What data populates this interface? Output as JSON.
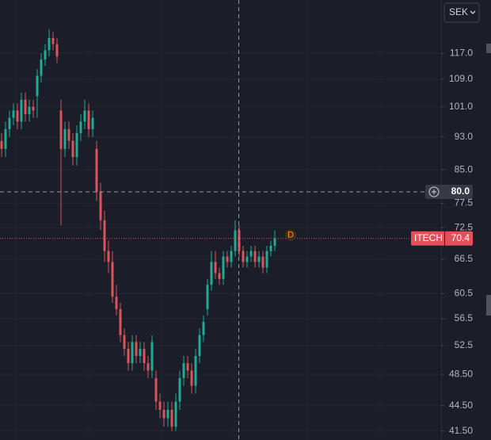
{
  "chart_data": {
    "type": "candlestick",
    "symbol": "ITECH",
    "currency": "SEK",
    "marker": "D",
    "log_scale": true,
    "grid": true,
    "up_color": "#22ab94",
    "down_color": "#d9545b",
    "ylim": [
      40.5,
      135.4
    ],
    "yticks": [
      {
        "value": 117,
        "label": "117.0"
      },
      {
        "value": 109,
        "label": "109.0"
      },
      {
        "value": 101,
        "label": "101.0"
      },
      {
        "value": 93,
        "label": "93.0"
      },
      {
        "value": 85,
        "label": "85.0"
      },
      {
        "value": 77.5,
        "label": "77.5"
      },
      {
        "value": 72.5,
        "label": "72.5"
      },
      {
        "value": 66.5,
        "label": "66.5"
      },
      {
        "value": 60.5,
        "label": "60.5"
      },
      {
        "value": 56.5,
        "label": "56.5"
      },
      {
        "value": 52.5,
        "label": "52.5"
      },
      {
        "value": 48.5,
        "label": "48.50"
      },
      {
        "value": 44.5,
        "label": "44.50"
      },
      {
        "value": 41.5,
        "label": "41.50"
      }
    ],
    "crosshair": {
      "value": 80,
      "label": "80.0"
    },
    "last": 70.4,
    "open": [
      92,
      90,
      95,
      98,
      100,
      97,
      103,
      99,
      101,
      104,
      110,
      115,
      118,
      122,
      120,
      100,
      90,
      95,
      92,
      88,
      94,
      97,
      100,
      95,
      90,
      80,
      74,
      68,
      66,
      60,
      58,
      54,
      52,
      50,
      53,
      51,
      52,
      50,
      49,
      48,
      45,
      44,
      43,
      44,
      42,
      45,
      48,
      50,
      49,
      47,
      51,
      54,
      58,
      62,
      66,
      64,
      63,
      67,
      66,
      68,
      72,
      68,
      66,
      67,
      68,
      66,
      67,
      65,
      68,
      69
    ],
    "high": [
      94,
      97,
      100,
      102,
      102,
      105,
      105,
      103,
      103,
      112,
      117,
      120,
      125,
      124,
      122,
      103,
      97,
      97,
      94,
      96,
      99,
      103,
      102,
      100,
      92,
      82,
      76,
      70,
      68,
      62,
      59,
      55,
      53,
      54,
      54,
      53,
      53,
      51,
      54,
      49,
      46,
      45,
      45,
      45,
      46,
      49,
      51,
      51,
      50,
      52,
      55,
      57,
      63,
      68,
      68,
      65,
      68,
      68,
      69,
      74,
      73,
      69,
      68,
      69,
      69,
      68,
      68,
      69,
      70,
      72
    ],
    "low": [
      88,
      88,
      93,
      96,
      95,
      95,
      97,
      97,
      98,
      98,
      108,
      113,
      116,
      118,
      114,
      73,
      88,
      90,
      86,
      86,
      92,
      95,
      93,
      93,
      78,
      72,
      66,
      64,
      59,
      57,
      53,
      51,
      49,
      49,
      50,
      50,
      49,
      48,
      48,
      44,
      43,
      42,
      42,
      41.5,
      41.5,
      44,
      47,
      48,
      46,
      46,
      50,
      53,
      57,
      61,
      63,
      62,
      62,
      65,
      65,
      67,
      67,
      65,
      65,
      66,
      65,
      65,
      64,
      64,
      67,
      68
    ],
    "close": [
      90,
      95,
      98,
      100,
      97,
      103,
      99,
      101,
      100,
      110,
      115,
      118,
      122,
      120,
      116,
      90,
      95,
      92,
      88,
      94,
      97,
      100,
      95,
      98,
      80,
      74,
      68,
      66,
      60,
      58,
      54,
      52,
      50,
      53,
      51,
      52,
      50,
      49,
      53,
      45,
      44,
      43,
      44,
      42,
      45,
      48,
      50,
      49,
      47,
      51,
      54,
      56,
      62,
      66,
      64,
      63,
      67,
      66,
      68,
      72,
      68,
      66,
      67,
      68,
      66,
      67,
      65,
      68,
      69,
      70.4
    ]
  }
}
